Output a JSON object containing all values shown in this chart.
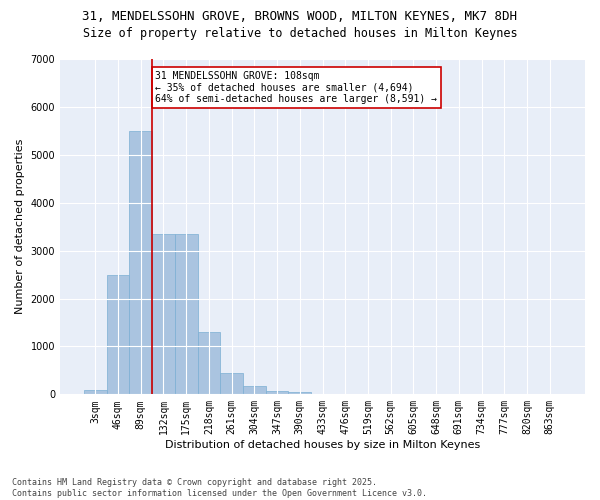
{
  "title_line1": "31, MENDELSSOHN GROVE, BROWNS WOOD, MILTON KEYNES, MK7 8DH",
  "title_line2": "Size of property relative to detached houses in Milton Keynes",
  "xlabel": "Distribution of detached houses by size in Milton Keynes",
  "ylabel": "Number of detached properties",
  "categories": [
    "3sqm",
    "46sqm",
    "89sqm",
    "132sqm",
    "175sqm",
    "218sqm",
    "261sqm",
    "304sqm",
    "347sqm",
    "390sqm",
    "433sqm",
    "476sqm",
    "519sqm",
    "562sqm",
    "605sqm",
    "648sqm",
    "691sqm",
    "734sqm",
    "777sqm",
    "820sqm",
    "863sqm"
  ],
  "values": [
    100,
    2500,
    5500,
    3350,
    3350,
    1300,
    450,
    175,
    80,
    50,
    0,
    0,
    0,
    0,
    0,
    0,
    0,
    0,
    0,
    0,
    0
  ],
  "bar_color": "#aac4e0",
  "bar_edge_color": "#7bafd4",
  "vline_color": "#cc0000",
  "annotation_text": "31 MENDELSSOHN GROVE: 108sqm\n← 35% of detached houses are smaller (4,694)\n64% of semi-detached houses are larger (8,591) →",
  "annotation_box_color": "white",
  "annotation_box_edge_color": "#cc0000",
  "ylim": [
    0,
    7000
  ],
  "yticks": [
    0,
    1000,
    2000,
    3000,
    4000,
    5000,
    6000,
    7000
  ],
  "background_color": "#e8eef8",
  "grid_color": "white",
  "footer_line1": "Contains HM Land Registry data © Crown copyright and database right 2025.",
  "footer_line2": "Contains public sector information licensed under the Open Government Licence v3.0.",
  "title_fontsize": 9,
  "subtitle_fontsize": 8.5,
  "axis_label_fontsize": 8,
  "tick_fontsize": 7,
  "annotation_fontsize": 7,
  "footer_fontsize": 6
}
